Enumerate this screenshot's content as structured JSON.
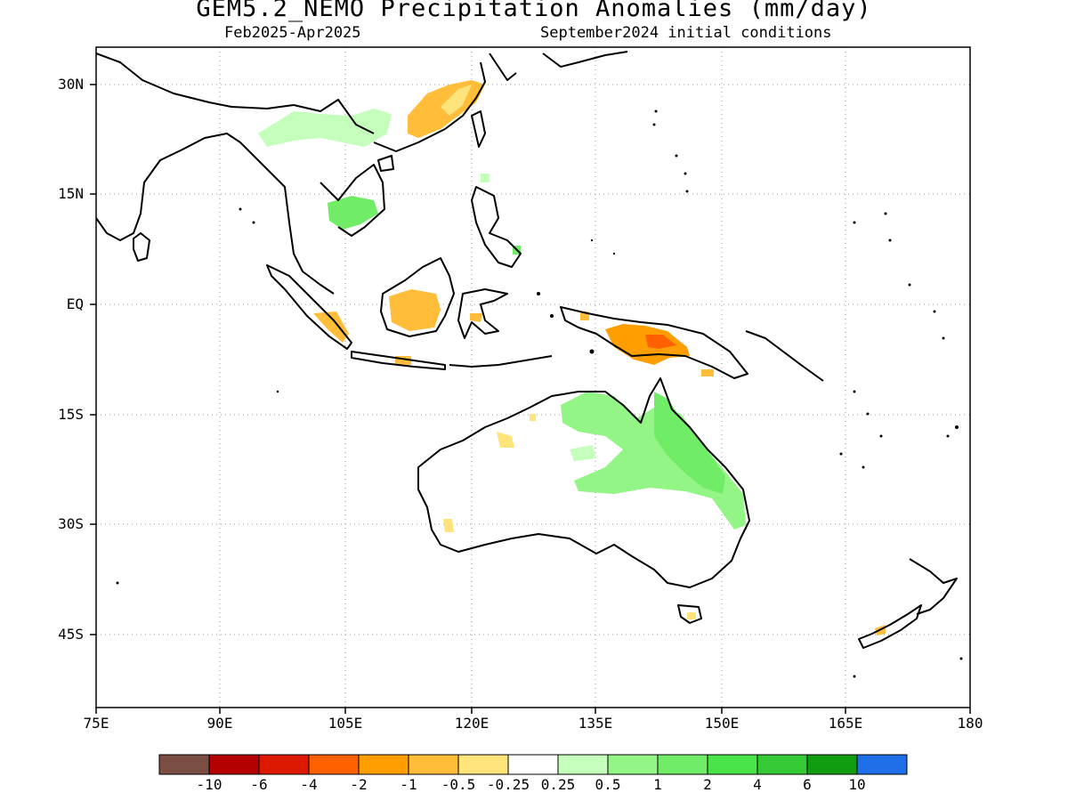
{
  "title": "GEM5.2_NEMO Precipitation Anomalies (mm/day)",
  "subtitle_left": "Feb2025-Apr2025",
  "subtitle_right": "September2024 initial conditions",
  "map": {
    "lon_range": [
      75,
      180
    ],
    "lat_range": [
      -55,
      35
    ],
    "x_tick_labels": [
      "75E",
      "90E",
      "105E",
      "120E",
      "135E",
      "150E",
      "165E",
      "180"
    ],
    "y_tick_labels": [
      "30N",
      "15N",
      "EQ",
      "15S",
      "30S",
      "45S"
    ],
    "grid": "dotted"
  },
  "colorbar": {
    "colors": [
      "#7a4e43",
      "#b30000",
      "#dd1a00",
      "#ff6100",
      "#ff9e00",
      "#ffbd39",
      "#ffe47c",
      "#ffffff",
      "#c4ffbb",
      "#92f586",
      "#70ec66",
      "#4ae34a",
      "#36c936",
      "#109d10",
      "#1f6fe8"
    ],
    "labels": [
      "-10",
      "-6",
      "-4",
      "-2",
      "-1",
      "-0.5",
      "-0.25",
      "0.25",
      "0.5",
      "1",
      "2",
      "4",
      "6",
      "10"
    ]
  },
  "legend_colors": {
    "wet_light": "#c4ffbb",
    "wet": "#92f586",
    "wet_mid": "#70ec66",
    "dry_light": "#ffe47c",
    "dry": "#ffbd39",
    "dry_mid": "#ff9e00",
    "dry_strong": "#ff6100",
    "land_outline": "#000000"
  }
}
